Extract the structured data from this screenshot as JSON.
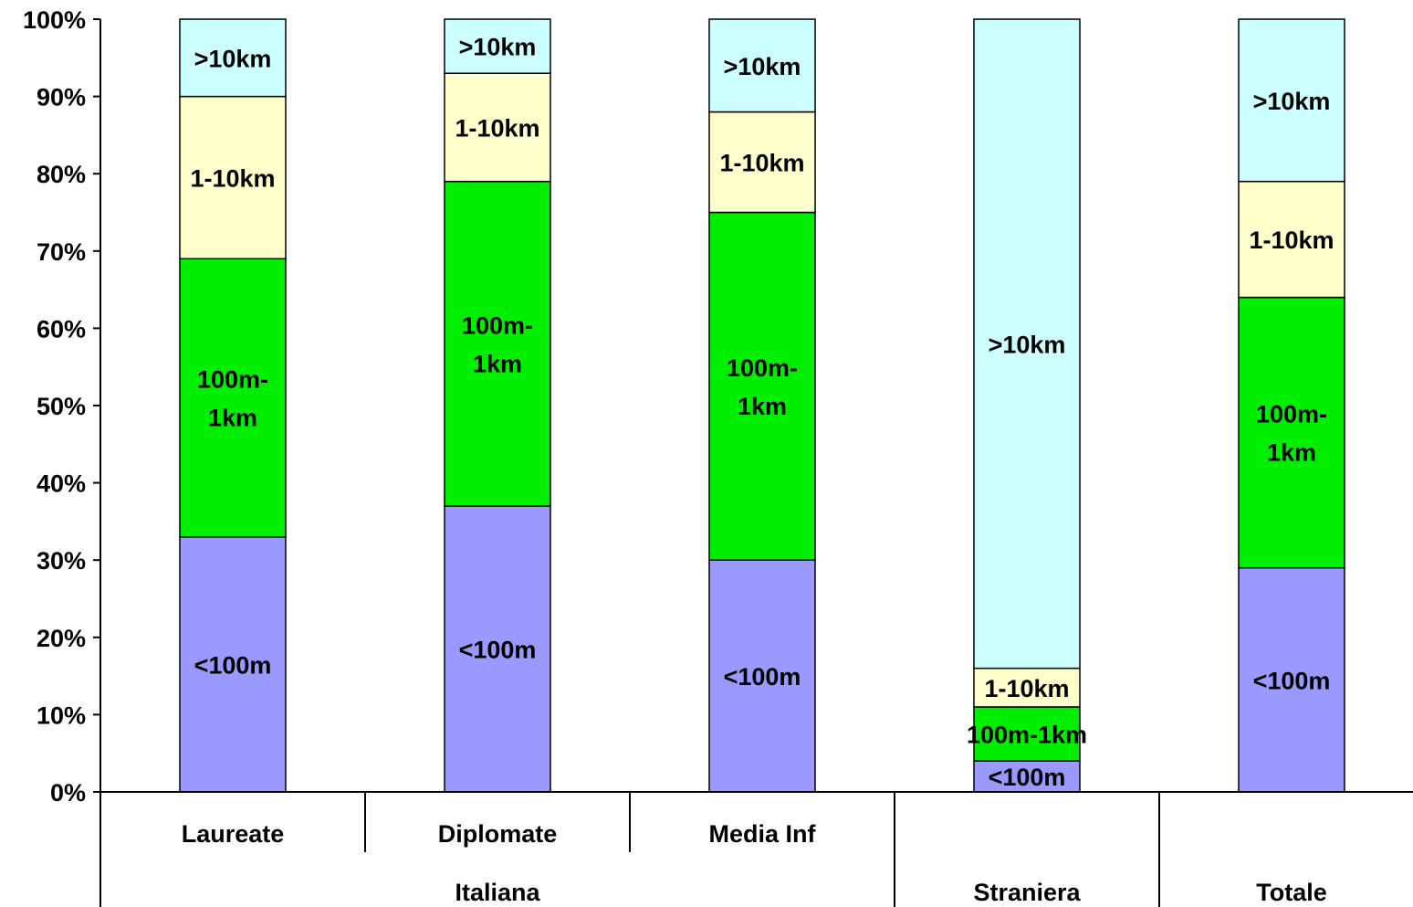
{
  "chart_data": {
    "type": "bar",
    "stacked": true,
    "percent": true,
    "ylim": [
      0,
      100
    ],
    "yticks": [
      "0%",
      "10%",
      "20%",
      "30%",
      "40%",
      "50%",
      "60%",
      "70%",
      "80%",
      "90%",
      "100%"
    ],
    "categories": [
      "Laureate",
      "Diplomate",
      "Media Inf",
      "",
      ""
    ],
    "groups": [
      {
        "label": "Italiana",
        "span": 3
      },
      {
        "label": "Straniera",
        "span": 1
      },
      {
        "label": "Totale",
        "span": 1
      }
    ],
    "series": [
      {
        "name": "<100m",
        "color": "#9999ff",
        "values": [
          33,
          37,
          30,
          4,
          29
        ]
      },
      {
        "name": "100m-1km",
        "color": "#00ee00",
        "values": [
          36,
          42,
          45,
          7,
          35
        ]
      },
      {
        "name": "1-10km",
        "color": "#ffffcc",
        "values": [
          21,
          14,
          13,
          5,
          15
        ]
      },
      {
        "name": ">10km",
        "color": "#ccffff",
        "values": [
          10,
          7,
          12,
          84,
          21
        ]
      }
    ],
    "segment_labels": [
      [
        [
          "<100m"
        ],
        [
          "100m-",
          "1km"
        ],
        [
          "1-10km"
        ],
        [
          ">10km"
        ]
      ],
      [
        [
          "<100m"
        ],
        [
          "100m-",
          "1km"
        ],
        [
          "1-10km"
        ],
        [
          ">10km"
        ]
      ],
      [
        [
          "<100m"
        ],
        [
          "100m-",
          "1km"
        ],
        [
          "1-10km"
        ],
        [
          ">10km"
        ]
      ],
      [
        [
          "<100m"
        ],
        [
          "100m-1km"
        ],
        [
          "1-10km"
        ],
        [
          ">10km"
        ]
      ],
      [
        [
          "<100m"
        ],
        [
          "100m-",
          "1km"
        ],
        [
          "1-10km"
        ],
        [
          ">10km"
        ]
      ]
    ],
    "grid": false,
    "legend": "none"
  }
}
